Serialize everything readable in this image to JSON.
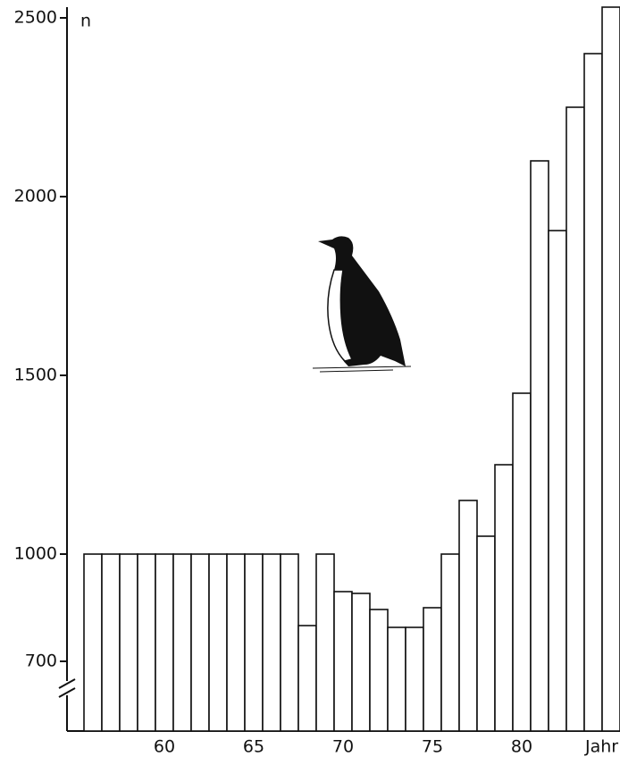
{
  "chart_data": {
    "type": "bar",
    "y_label": "n",
    "x_label": "Jahr",
    "categories": [
      null,
      null,
      null,
      null,
      "60",
      null,
      null,
      null,
      null,
      "65",
      null,
      null,
      null,
      null,
      "70",
      null,
      null,
      null,
      null,
      "75",
      null,
      null,
      null,
      null,
      "80",
      null,
      null,
      null,
      null,
      null
    ],
    "values": [
      1000,
      1000,
      1000,
      1000,
      1000,
      1000,
      1000,
      1000,
      1000,
      1000,
      1000,
      1000,
      800,
      1000,
      895,
      890,
      845,
      795,
      795,
      850,
      1000,
      1150,
      1050,
      1250,
      1450,
      2100,
      1905,
      2250,
      2400,
      2530
    ],
    "color": "#ffffff",
    "ylim": [
      505,
      2550
    ],
    "yticks": [
      700,
      1000,
      1500,
      2000,
      2500
    ],
    "grid": false
  }
}
